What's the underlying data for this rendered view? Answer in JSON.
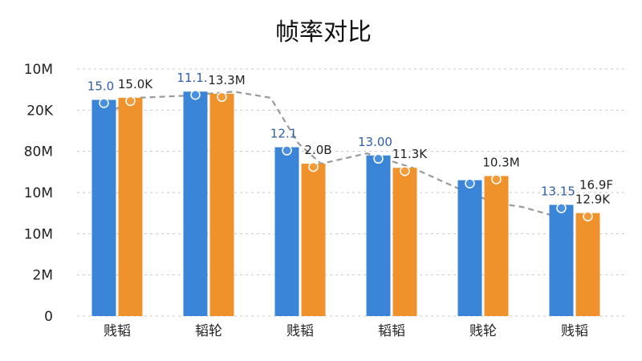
{
  "chart_data": {
    "type": "bar",
    "title": "帧率对比",
    "xlabel": "",
    "ylabel": "",
    "y_tick_labels": [
      "0",
      "2M",
      "10M",
      "10M",
      "80M",
      "20K",
      "10M"
    ],
    "categories": [
      "贱韬",
      "韬轮",
      "贱韬",
      "韬韬",
      "贱轮",
      "贱韬"
    ],
    "ylim": [
      0,
      6
    ],
    "grid": "horizontal dashed",
    "colors": {
      "blue": "#3a85d8",
      "orange": "#f0922b",
      "trend": "#9a9a9a",
      "blue_label": "#2f5fa8",
      "dark_label": "#222222"
    },
    "series": [
      {
        "color": "#3a85d8",
        "values": [
          5.25,
          5.45,
          4.1,
          3.9,
          3.3,
          2.7
        ],
        "data_labels": [
          "15.0",
          "11.1.",
          "12.1",
          "13.00",
          "",
          "13.15"
        ]
      },
      {
        "color": "#f0922b",
        "values": [
          5.3,
          5.4,
          3.7,
          3.6,
          3.4,
          2.5
        ],
        "data_labels": [
          "15.0K",
          "13.3M",
          "2.0B",
          "11.3K",
          "10.3M",
          "12.9K"
        ]
      }
    ],
    "extra_labels": [
      "16.9F"
    ],
    "trend_line": {
      "x": [
        0.55,
        1.0,
        1.5,
        2.05,
        2.45,
        2.75,
        3.0,
        3.5,
        4.0,
        4.5,
        4.9,
        5.2,
        5.6
      ],
      "y": [
        4.8,
        5.3,
        5.35,
        5.45,
        5.3,
        4.2,
        3.7,
        3.95,
        3.6,
        3.1,
        2.75,
        2.65,
        2.4
      ]
    }
  }
}
